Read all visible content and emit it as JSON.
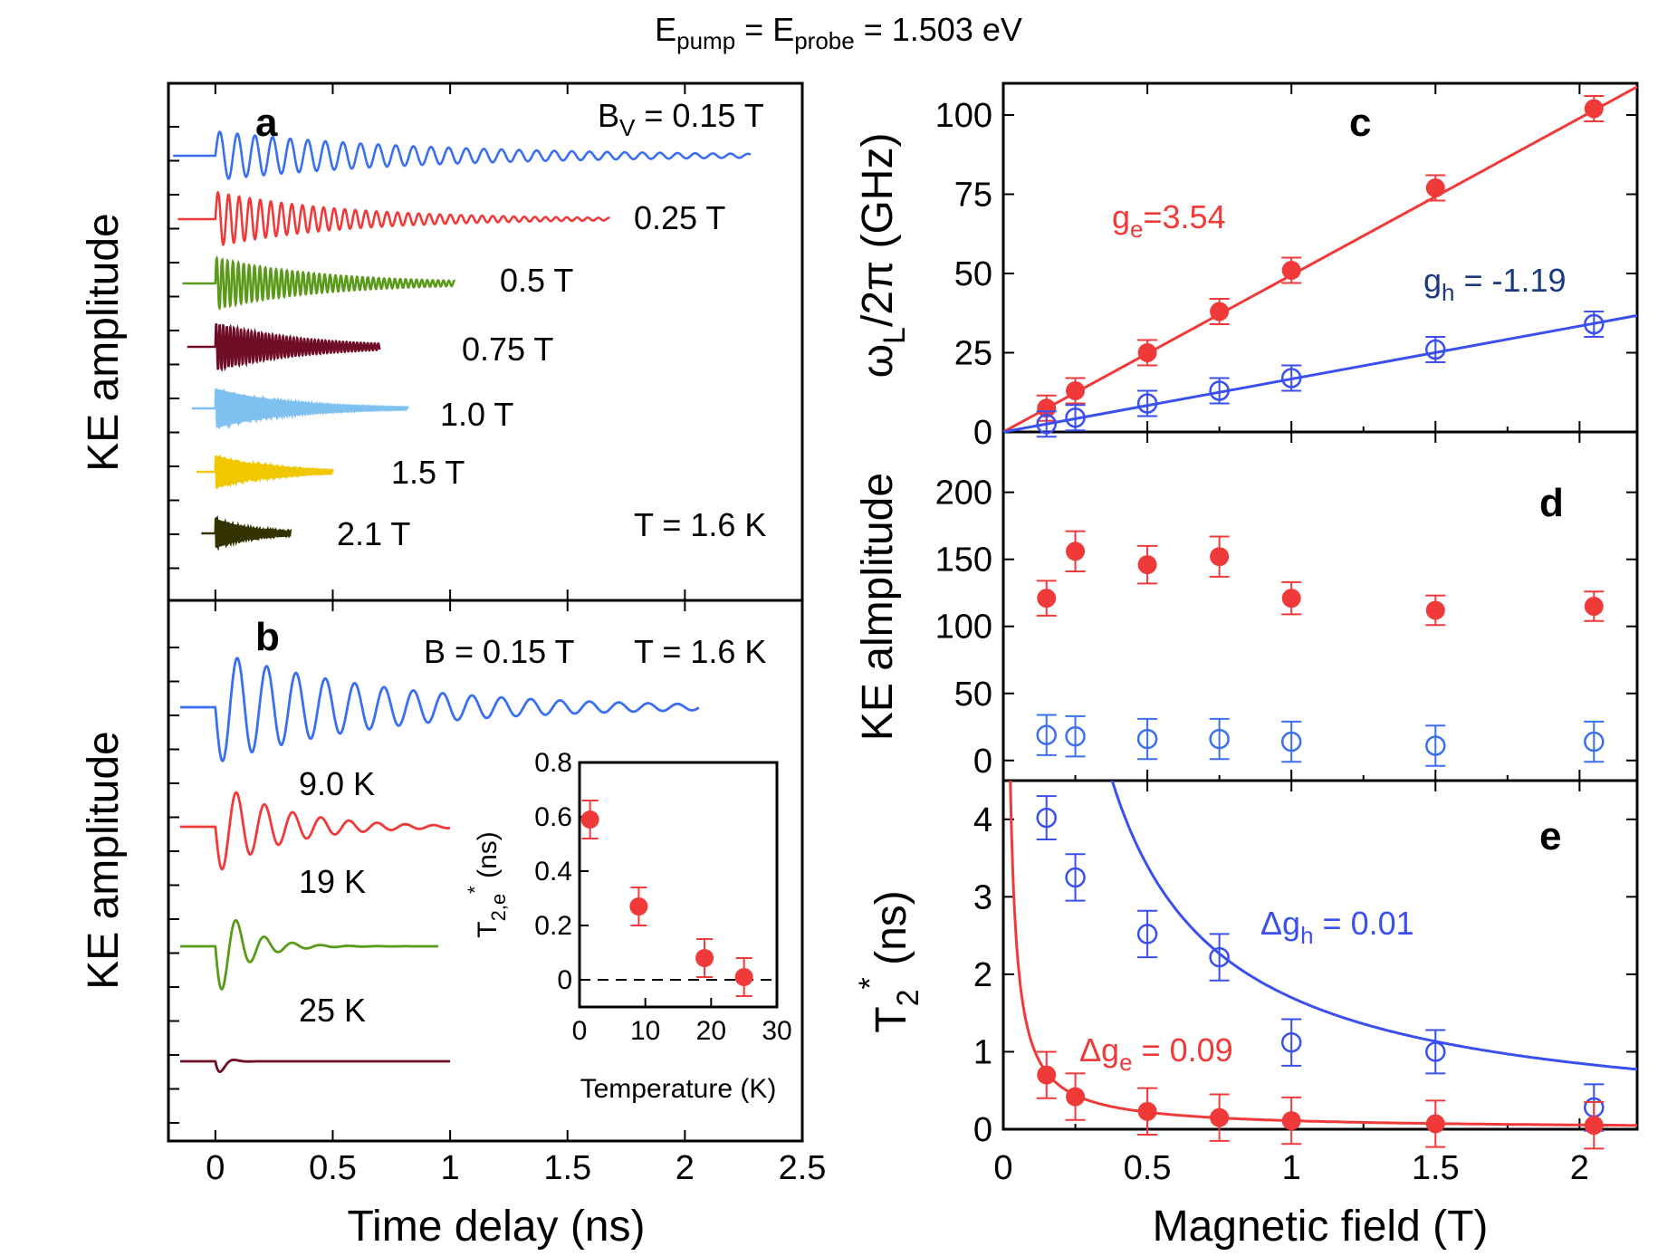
{
  "figure_title": {
    "main": "E",
    "sub1": "pump",
    "mid": " = E",
    "sub2": "probe",
    "tail": " = 1.503 eV"
  },
  "chart_data": [
    {
      "panel": "a",
      "type": "line",
      "title": "a",
      "xlabel": "Time delay (ns)",
      "ylabel": "KE amplitude",
      "xlim": [
        -0.2,
        2.5
      ],
      "xticks": [
        "0",
        "0.5",
        "1",
        "1.5",
        "2",
        "2.5"
      ],
      "annotations": {
        "top_right_main": "B",
        "top_right_sub": "V",
        "top_right_tail": " = 0.15 T",
        "temp": "T = 1.6 K"
      },
      "series": [
        {
          "name": "0.15 T",
          "label": "",
          "color": "#3a6ff0",
          "x_end": 2.28,
          "period": 0.075,
          "decay": 0.9,
          "amp": 1.0
        },
        {
          "name": "0.25 T",
          "label": "0.25 T",
          "color": "#f03a3a",
          "x_end": 1.68,
          "period": 0.045,
          "decay": 0.55,
          "amp": 1.0
        },
        {
          "name": "0.5 T",
          "label": "0.5 T",
          "color": "#5a9a1a",
          "x_end": 1.02,
          "period": 0.023,
          "decay": 0.45,
          "amp": 1.0
        },
        {
          "name": "0.75 T",
          "label": "0.75 T",
          "color": "#6e0d25",
          "x_end": 0.7,
          "period": 0.015,
          "decay": 0.35,
          "amp": 1.0
        },
        {
          "name": "1.0 T",
          "label": "1.0 T",
          "color": "#7ec0f0",
          "x_end": 0.82,
          "period": 0.011,
          "decay": 0.3,
          "amp": 1.0
        },
        {
          "name": "1.5 T",
          "label": "1.5 T",
          "color": "#f0c800",
          "x_end": 0.5,
          "period": 0.008,
          "decay": 0.22,
          "amp": 0.9
        },
        {
          "name": "2.1 T",
          "label": "2.1 T",
          "color": "#333300",
          "x_end": 0.32,
          "period": 0.006,
          "decay": 0.16,
          "amp": 0.9
        }
      ]
    },
    {
      "panel": "b",
      "type": "line",
      "title": "b",
      "xlabel": "Time delay (ns)",
      "ylabel": "KE amplitude",
      "xlim": [
        -0.2,
        2.5
      ],
      "annotations": {
        "field": "B = 0.15 T",
        "temp": "T = 1.6 K"
      },
      "series": [
        {
          "name": "1.6 K",
          "label": "",
          "color": "#3a6ff0",
          "x_end": 2.06,
          "period": 0.125,
          "decay": 0.7
        },
        {
          "name": "9.0 K",
          "label": "9.0 K",
          "color": "#f03a3a",
          "x_end": 1.0,
          "period": 0.12,
          "decay": 0.28
        },
        {
          "name": "19 K",
          "label": "19 K",
          "color": "#5a9a1a",
          "x_end": 0.95,
          "period": 0.12,
          "decay": 0.12
        },
        {
          "name": "25 K",
          "label": "25 K",
          "color": "#6e0d25",
          "x_end": 1.0,
          "period": 0.12,
          "decay": 0.03
        }
      ],
      "inset": {
        "type": "scatter",
        "xlabel": "Temperature (K)",
        "ylabel_main": "T",
        "ylabel_sub": "2,e",
        "ylabel_sup": "*",
        "ylabel_tail": " (ns)",
        "xlim": [
          0,
          30
        ],
        "ylim": [
          -0.1,
          0.8
        ],
        "xticks": [
          "0",
          "10",
          "20",
          "30"
        ],
        "yticks": [
          "0",
          "0.2",
          "0.4",
          "0.6",
          "0.8"
        ],
        "x": [
          1.6,
          9.0,
          19,
          25
        ],
        "y": [
          0.59,
          0.27,
          0.08,
          0.01
        ],
        "err": [
          0.07,
          0.07,
          0.07,
          0.07
        ],
        "color": "#f03a3a",
        "dashed_zero_line": true
      }
    },
    {
      "panel": "c",
      "type": "scatter",
      "title": "c",
      "ylabel_main": "ω",
      "ylabel_sub": "L",
      "ylabel_tail": "/2π (GHz)",
      "xlim": [
        0,
        2.2
      ],
      "ylim": [
        0,
        110
      ],
      "yticks": [
        "0",
        "25",
        "50",
        "75",
        "100"
      ],
      "series": [
        {
          "name": "electron",
          "marker": "filled",
          "color": "#f03a3a",
          "x": [
            0.15,
            0.25,
            0.5,
            0.75,
            1.0,
            1.5,
            2.05
          ],
          "y": [
            7.5,
            13,
            25,
            38,
            51,
            77,
            102
          ],
          "err": [
            4,
            4,
            4,
            4,
            4,
            4,
            4
          ],
          "fit_slope": 49.5,
          "label_main": "g",
          "label_sub": "e",
          "label_tail": "=3.54"
        },
        {
          "name": "hole",
          "marker": "open",
          "color": "#3a4ff0",
          "x": [
            0.15,
            0.25,
            0.5,
            0.75,
            1.0,
            1.5,
            2.05
          ],
          "y": [
            2.5,
            4.5,
            9,
            13,
            17,
            26,
            34
          ],
          "err": [
            4,
            4,
            4,
            4,
            4,
            4,
            4
          ],
          "fit_slope": 16.7,
          "label_main": "g",
          "label_sub": "h",
          "label_tail": " = -1.19"
        }
      ]
    },
    {
      "panel": "d",
      "type": "scatter",
      "title": "d",
      "ylabel": "KE almplitude",
      "xlim": [
        0,
        2.2
      ],
      "ylim": [
        -15,
        245
      ],
      "yticks": [
        "0",
        "50",
        "100",
        "150",
        "200"
      ],
      "series": [
        {
          "name": "electron",
          "marker": "filled",
          "color": "#f03a3a",
          "x": [
            0.15,
            0.25,
            0.5,
            0.75,
            1.0,
            1.5,
            2.05
          ],
          "y": [
            121,
            156,
            146,
            152,
            121,
            112,
            115
          ],
          "err": [
            13,
            15,
            14,
            15,
            12,
            11,
            11
          ]
        },
        {
          "name": "hole",
          "marker": "open",
          "color": "#3a6ff0",
          "x": [
            0.15,
            0.25,
            0.5,
            0.75,
            1.0,
            1.5,
            2.05
          ],
          "y": [
            19,
            18,
            16,
            16,
            14,
            11,
            14
          ],
          "err": [
            15,
            15,
            15,
            15,
            15,
            15,
            15
          ]
        }
      ]
    },
    {
      "panel": "e",
      "type": "scatter",
      "title": "e",
      "xlabel": "Magnetic field (T)",
      "ylabel_main": "T",
      "ylabel_sub": "2",
      "ylabel_sup": "*",
      "ylabel_tail": " (ns)",
      "xlim": [
        0,
        2.2
      ],
      "ylim": [
        0,
        4.5
      ],
      "xticks": [
        "0",
        "0.5",
        "1",
        "1.5",
        "2"
      ],
      "yticks": [
        "0",
        "1",
        "2",
        "3",
        "4"
      ],
      "series": [
        {
          "name": "hole",
          "marker": "open",
          "color": "#3a4ff0",
          "x": [
            0.15,
            0.25,
            0.5,
            0.75,
            1.0,
            1.5,
            2.05
          ],
          "y": [
            4.02,
            3.25,
            2.52,
            2.22,
            1.12,
            1.0,
            0.28
          ],
          "err": [
            0.28,
            0.3,
            0.3,
            0.3,
            0.3,
            0.28,
            0.3
          ],
          "fit_const": 1.7,
          "label_main": "Δg",
          "label_sub": "h",
          "label_tail": " = 0.01"
        },
        {
          "name": "electron",
          "marker": "filled",
          "color": "#f03a3a",
          "x": [
            0.15,
            0.25,
            0.5,
            0.75,
            1.0,
            1.5,
            2.05
          ],
          "y": [
            0.7,
            0.42,
            0.23,
            0.15,
            0.11,
            0.07,
            0.05
          ],
          "err": [
            0.3,
            0.3,
            0.3,
            0.3,
            0.3,
            0.3,
            0.3
          ],
          "fit_const": 0.11,
          "label_main": "Δg",
          "label_sub": "e",
          "label_tail": " = 0.09"
        }
      ]
    }
  ]
}
